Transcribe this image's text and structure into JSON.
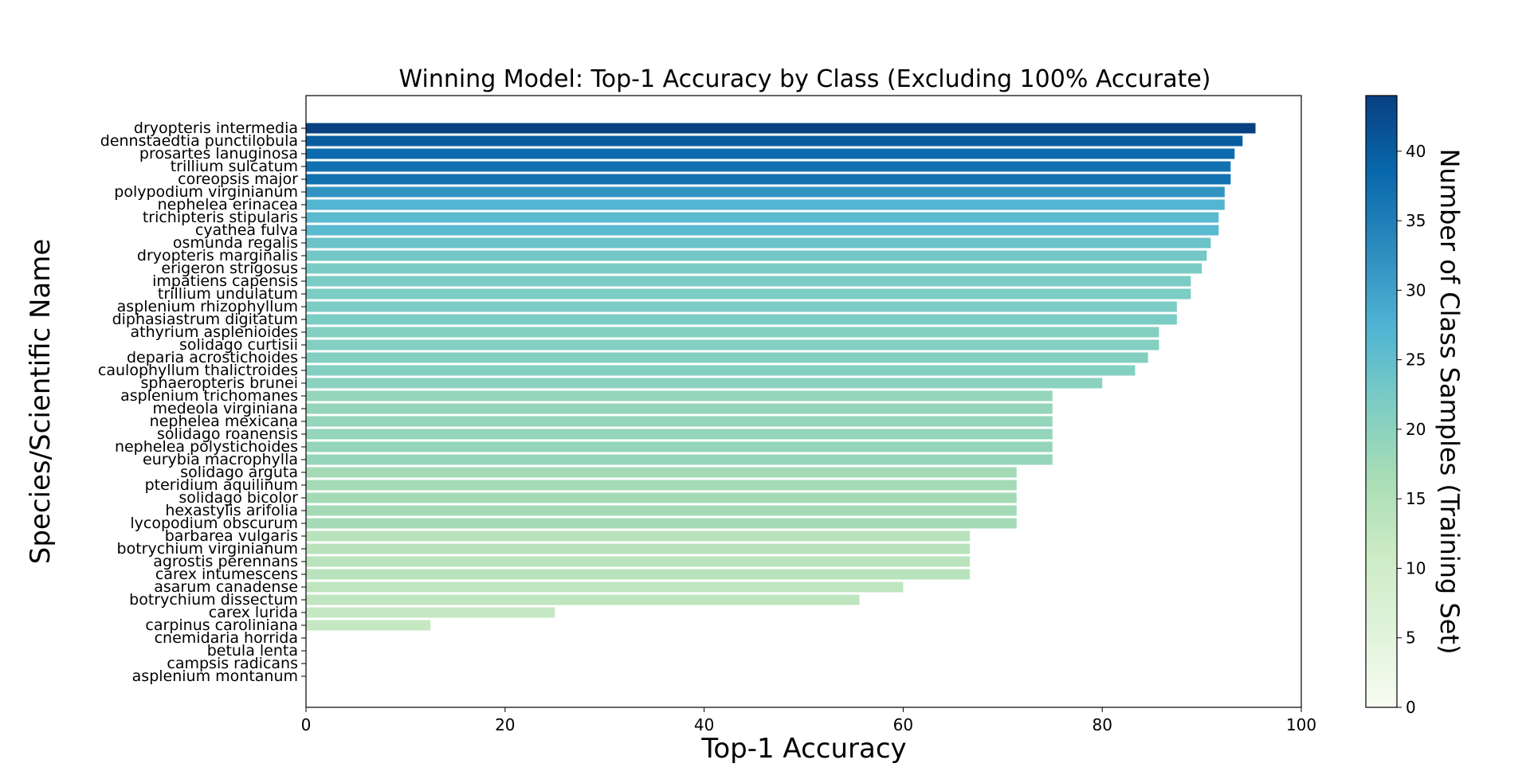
{
  "chart_data": {
    "type": "bar",
    "orientation": "horizontal",
    "title": "Winning Model: Top-1 Accuracy by Class (Excluding 100% Accurate)",
    "xlabel": "Top-1 Accuracy",
    "ylabel": "Species/Scientific Name",
    "xlim": [
      0,
      100
    ],
    "xticks": [
      0,
      20,
      40,
      60,
      80,
      100
    ],
    "grid": false,
    "categories": [
      "dryopteris intermedia",
      "dennstaedtia punctilobula",
      "prosartes lanuginosa",
      "trillium sulcatum",
      "coreopsis major",
      "polypodium virginianum",
      "nephelea erinacea",
      "trichipteris stipularis",
      "cyathea fulva",
      "osmunda regalis",
      "dryopteris marginalis",
      "erigeron strigosus",
      "impatiens capensis",
      "trillium undulatum",
      "asplenium rhizophyllum",
      "diphasiastrum digitatum",
      "athyrium asplenioides",
      "solidago curtisii",
      "deparia acrostichoides",
      "caulophyllum thalictroides",
      "sphaeropteris brunei",
      "asplenium trichomanes",
      "medeola virginiana",
      "nephelea mexicana",
      "solidago roanensis",
      "nephelea polystichoides",
      "eurybia macrophylla",
      "solidago arguta",
      "pteridium aquilinum",
      "solidago bicolor",
      "hexastylis arifolia",
      "lycopodium obscurum",
      "barbarea vulgaris",
      "botrychium virginianum",
      "agrostis perennans",
      "carex intumescens",
      "asarum canadense",
      "botrychium dissectum",
      "carex lurida",
      "carpinus caroliniana",
      "cnemidaria horrida",
      "betula lenta",
      "campsis radicans",
      "asplenium montanum"
    ],
    "values": [
      95.4,
      94.1,
      93.3,
      92.9,
      92.9,
      92.3,
      92.3,
      91.7,
      91.7,
      90.9,
      90.5,
      90.0,
      88.9,
      88.9,
      87.5,
      87.5,
      85.7,
      85.7,
      84.6,
      83.3,
      80.0,
      75.0,
      75.0,
      75.0,
      75.0,
      75.0,
      75.0,
      71.4,
      71.4,
      71.4,
      71.4,
      71.4,
      66.7,
      66.7,
      66.7,
      66.7,
      60.0,
      55.6,
      25.0,
      12.5,
      0,
      0,
      0,
      0
    ],
    "sample_counts": [
      44,
      40,
      38,
      37,
      37,
      32,
      27,
      26,
      26,
      24,
      23,
      22,
      22,
      22,
      22,
      22,
      21,
      21,
      21,
      21,
      20,
      19,
      19,
      19,
      19,
      19,
      19,
      17,
      17,
      17,
      17,
      17,
      14,
      14,
      14,
      14,
      13,
      13,
      12,
      12,
      11,
      11,
      11,
      11
    ],
    "colorbar": {
      "label": "Number of Class Samples (Training Set)",
      "range": [
        0,
        44
      ],
      "ticks": [
        0,
        5,
        10,
        15,
        20,
        25,
        30,
        35,
        40
      ],
      "colormap": "GnBu",
      "stops": [
        "#f7fcf0",
        "#e0f3db",
        "#ccebc5",
        "#a8ddb5",
        "#7bccc4",
        "#4eb3d3",
        "#2b8cbe",
        "#0868ac",
        "#084081"
      ]
    }
  }
}
